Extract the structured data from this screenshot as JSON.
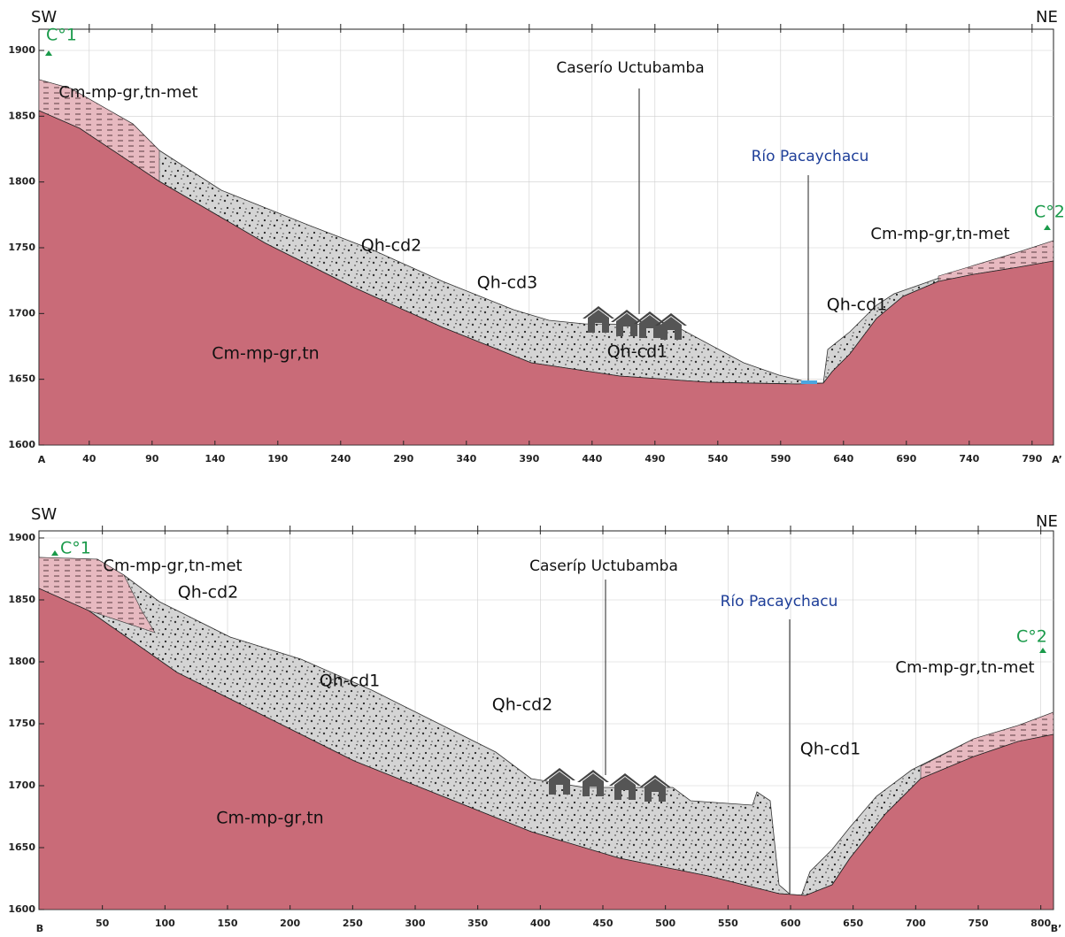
{
  "sections": [
    {
      "left_direction": "SW",
      "right_direction": "NE",
      "start_label": "A",
      "end_label": "A’",
      "peaks": [
        "C°1",
        "C°2"
      ],
      "village": "Caserío Uctubamba",
      "river": "Río Pacaychacu",
      "labels": [
        "Cm-mp-gr,tn-met",
        "Qh-cd2",
        "Qh-cd3",
        "Qh-cd1",
        "Qh-cd1",
        "Cm-mp-gr,tn",
        "Cm-mp-gr,tn-met"
      ],
      "yticks": [
        1900,
        1850,
        1800,
        1750,
        1700,
        1650,
        1600
      ],
      "xticks": [
        40,
        90,
        140,
        190,
        240,
        290,
        340,
        390,
        440,
        490,
        540,
        590,
        640,
        690,
        740,
        790
      ]
    },
    {
      "left_direction": "SW",
      "right_direction": "NE",
      "start_label": "B",
      "end_label": "B’",
      "peaks": [
        "C°1",
        "C°2"
      ],
      "village": "Caseríp Uctubamba",
      "river": "Río Pacaychacu",
      "labels": [
        "Cm-mp-gr,tn-met",
        "Qh-cd2",
        "Qh-cd1",
        "Qh-cd2",
        "Qh-cd1",
        "Cm-mp-gr,tn",
        "Cm-mp-gr,tn-met"
      ],
      "yticks": [
        1900,
        1850,
        1800,
        1750,
        1700,
        1650,
        1600
      ],
      "xticks": [
        50,
        100,
        150,
        200,
        250,
        300,
        350,
        400,
        450,
        500,
        550,
        600,
        650,
        700,
        750,
        800
      ]
    }
  ]
}
